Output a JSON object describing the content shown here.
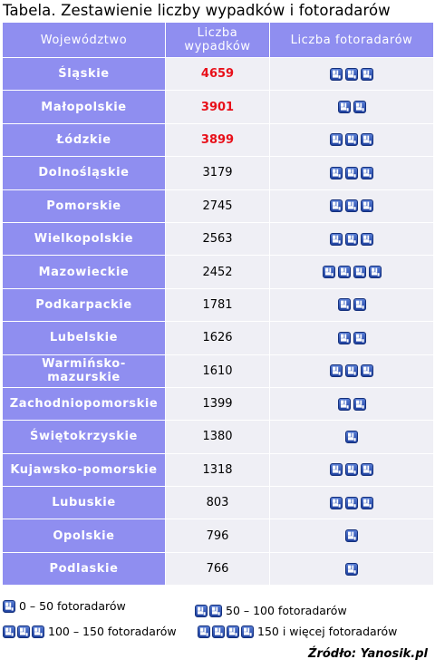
{
  "title": "Tabela. Zestawienie liczby wypadków i fotoradarów",
  "header": {
    "col1": "Województwo",
    "col2": "Liczba wypadków",
    "col3": "Liczba fotoradarów"
  },
  "accent_color": "#8f8ef0",
  "highlight_color": "#e8101a",
  "icon_name": "speed-camera-icon",
  "rows": [
    {
      "region": "Śląskie",
      "accidents": "4659",
      "radars": 3,
      "highlight": true
    },
    {
      "region": "Małopolskie",
      "accidents": "3901",
      "radars": 2,
      "highlight": true
    },
    {
      "region": "Łódzkie",
      "accidents": "3899",
      "radars": 3,
      "highlight": true
    },
    {
      "region": "Dolnośląskie",
      "accidents": "3179",
      "radars": 3,
      "highlight": false
    },
    {
      "region": "Pomorskie",
      "accidents": "2745",
      "radars": 3,
      "highlight": false
    },
    {
      "region": "Wielkopolskie",
      "accidents": "2563",
      "radars": 3,
      "highlight": false
    },
    {
      "region": "Mazowieckie",
      "accidents": "2452",
      "radars": 4,
      "highlight": false
    },
    {
      "region": "Podkarpackie",
      "accidents": "1781",
      "radars": 2,
      "highlight": false
    },
    {
      "region": "Lubelskie",
      "accidents": "1626",
      "radars": 2,
      "highlight": false
    },
    {
      "region": "Warmińsko-mazurskie",
      "accidents": "1610",
      "radars": 3,
      "highlight": false
    },
    {
      "region": "Zachodniopomorskie",
      "accidents": "1399",
      "radars": 2,
      "highlight": false
    },
    {
      "region": "Świętokrzyskie",
      "accidents": "1380",
      "radars": 1,
      "highlight": false
    },
    {
      "region": "Kujawsko-pomorskie",
      "accidents": "1318",
      "radars": 3,
      "highlight": false
    },
    {
      "region": "Lubuskie",
      "accidents": "803",
      "radars": 3,
      "highlight": false
    },
    {
      "region": "Opolskie",
      "accidents": "796",
      "radars": 1,
      "highlight": false
    },
    {
      "region": "Podlaskie",
      "accidents": "766",
      "radars": 1,
      "highlight": false
    }
  ],
  "legend": [
    {
      "icons": 1,
      "label": "0 – 50 fotoradarów"
    },
    {
      "icons": 2,
      "label": "50 – 100 fotoradarów"
    },
    {
      "icons": 3,
      "label": "100 – 150 fotoradarów"
    },
    {
      "icons": 4,
      "label": "150 i więcej fotoradarów"
    }
  ],
  "source": "Źródło: Yanosik.pl",
  "chart_data": {
    "type": "table",
    "title": "Tabela. Zestawienie liczby wypadków i fotoradarów",
    "columns": [
      "Województwo",
      "Liczba wypadków",
      "Liczba fotoradarów"
    ],
    "rows": [
      [
        "Śląskie",
        4659,
        "100 – 150 fotoradarów"
      ],
      [
        "Małopolskie",
        3901,
        "50 – 100 fotoradarów"
      ],
      [
        "Łódzkie",
        3899,
        "100 – 150 fotoradarów"
      ],
      [
        "Dolnośląskie",
        3179,
        "100 – 150 fotoradarów"
      ],
      [
        "Pomorskie",
        2745,
        "100 – 150 fotoradarów"
      ],
      [
        "Wielkopolskie",
        2563,
        "100 – 150 fotoradarów"
      ],
      [
        "Mazowieckie",
        2452,
        "150 i więcej fotoradarów"
      ],
      [
        "Podkarpackie",
        1781,
        "50 – 100 fotoradarów"
      ],
      [
        "Lubelskie",
        1626,
        "50 – 100 fotoradarów"
      ],
      [
        "Warmińsko-mazurskie",
        1610,
        "100 – 150 fotoradarów"
      ],
      [
        "Zachodniopomorskie",
        1399,
        "50 – 100 fotoradarów"
      ],
      [
        "Świętokrzyskie",
        1380,
        "0 – 50 fotoradarów"
      ],
      [
        "Kujawsko-pomorskie",
        1318,
        "100 – 150 fotoradarów"
      ],
      [
        "Lubuskie",
        803,
        "100 – 150 fotoradarów"
      ],
      [
        "Opolskie",
        796,
        "0 – 50 fotoradarów"
      ],
      [
        "Podlaskie",
        766,
        "0 – 50 fotoradarów"
      ]
    ],
    "source": "Źródło: Yanosik.pl"
  }
}
